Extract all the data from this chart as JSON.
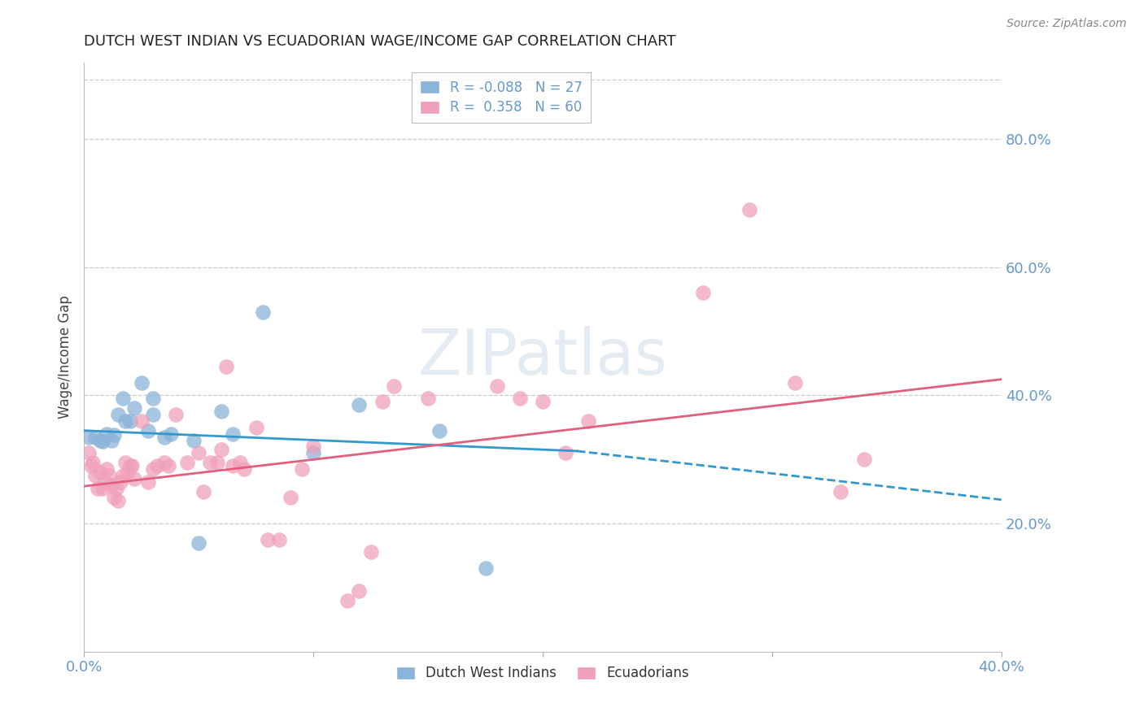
{
  "title": "DUTCH WEST INDIAN VS ECUADORIAN WAGE/INCOME GAP CORRELATION CHART",
  "source": "Source: ZipAtlas.com",
  "ylabel": "Wage/Income Gap",
  "right_yticks": [
    20.0,
    40.0,
    60.0,
    80.0
  ],
  "watermark_zip": "ZIP",
  "watermark_atlas": "atlas",
  "blue_color": "#8ab4d8",
  "pink_color": "#f0a0b8",
  "axis_color": "#6699cc",
  "blue_scatter": [
    [
      0.002,
      0.335
    ],
    [
      0.005,
      0.335
    ],
    [
      0.007,
      0.33
    ],
    [
      0.008,
      0.328
    ],
    [
      0.01,
      0.34
    ],
    [
      0.012,
      0.33
    ],
    [
      0.013,
      0.338
    ],
    [
      0.015,
      0.37
    ],
    [
      0.017,
      0.395
    ],
    [
      0.018,
      0.36
    ],
    [
      0.02,
      0.36
    ],
    [
      0.022,
      0.38
    ],
    [
      0.028,
      0.345
    ],
    [
      0.03,
      0.395
    ],
    [
      0.03,
      0.37
    ],
    [
      0.035,
      0.335
    ],
    [
      0.038,
      0.34
    ],
    [
      0.048,
      0.33
    ],
    [
      0.06,
      0.375
    ],
    [
      0.065,
      0.34
    ],
    [
      0.078,
      0.53
    ],
    [
      0.1,
      0.31
    ],
    [
      0.12,
      0.385
    ],
    [
      0.155,
      0.345
    ],
    [
      0.175,
      0.13
    ],
    [
      0.05,
      0.17
    ],
    [
      0.025,
      0.42
    ]
  ],
  "pink_scatter": [
    [
      0.002,
      0.31
    ],
    [
      0.003,
      0.29
    ],
    [
      0.004,
      0.295
    ],
    [
      0.005,
      0.275
    ],
    [
      0.006,
      0.255
    ],
    [
      0.007,
      0.28
    ],
    [
      0.008,
      0.255
    ],
    [
      0.009,
      0.265
    ],
    [
      0.01,
      0.285
    ],
    [
      0.011,
      0.275
    ],
    [
      0.012,
      0.26
    ],
    [
      0.013,
      0.24
    ],
    [
      0.014,
      0.255
    ],
    [
      0.015,
      0.235
    ],
    [
      0.016,
      0.265
    ],
    [
      0.017,
      0.275
    ],
    [
      0.018,
      0.295
    ],
    [
      0.019,
      0.28
    ],
    [
      0.02,
      0.29
    ],
    [
      0.021,
      0.29
    ],
    [
      0.022,
      0.27
    ],
    [
      0.025,
      0.36
    ],
    [
      0.028,
      0.265
    ],
    [
      0.03,
      0.285
    ],
    [
      0.032,
      0.29
    ],
    [
      0.035,
      0.295
    ],
    [
      0.037,
      0.29
    ],
    [
      0.04,
      0.37
    ],
    [
      0.045,
      0.295
    ],
    [
      0.05,
      0.31
    ],
    [
      0.052,
      0.25
    ],
    [
      0.055,
      0.295
    ],
    [
      0.058,
      0.295
    ],
    [
      0.06,
      0.315
    ],
    [
      0.062,
      0.445
    ],
    [
      0.065,
      0.29
    ],
    [
      0.068,
      0.295
    ],
    [
      0.07,
      0.285
    ],
    [
      0.075,
      0.35
    ],
    [
      0.08,
      0.175
    ],
    [
      0.085,
      0.175
    ],
    [
      0.09,
      0.24
    ],
    [
      0.095,
      0.285
    ],
    [
      0.1,
      0.32
    ],
    [
      0.115,
      0.08
    ],
    [
      0.12,
      0.095
    ],
    [
      0.125,
      0.155
    ],
    [
      0.13,
      0.39
    ],
    [
      0.135,
      0.415
    ],
    [
      0.15,
      0.395
    ],
    [
      0.18,
      0.415
    ],
    [
      0.19,
      0.395
    ],
    [
      0.2,
      0.39
    ],
    [
      0.21,
      0.31
    ],
    [
      0.22,
      0.36
    ],
    [
      0.27,
      0.56
    ],
    [
      0.29,
      0.69
    ],
    [
      0.31,
      0.42
    ],
    [
      0.33,
      0.25
    ],
    [
      0.34,
      0.3
    ]
  ],
  "blue_line_solid": {
    "x0": 0.0,
    "y0": 0.345,
    "x1": 0.215,
    "y1": 0.313
  },
  "blue_line_dash": {
    "x0": 0.215,
    "y0": 0.313,
    "x1": 0.4,
    "y1": 0.237
  },
  "pink_line": {
    "x0": 0.0,
    "y0": 0.258,
    "x1": 0.4,
    "y1": 0.425
  },
  "xmin": 0.0,
  "xmax": 0.4,
  "ymin": 0.0,
  "ymax": 0.92
}
